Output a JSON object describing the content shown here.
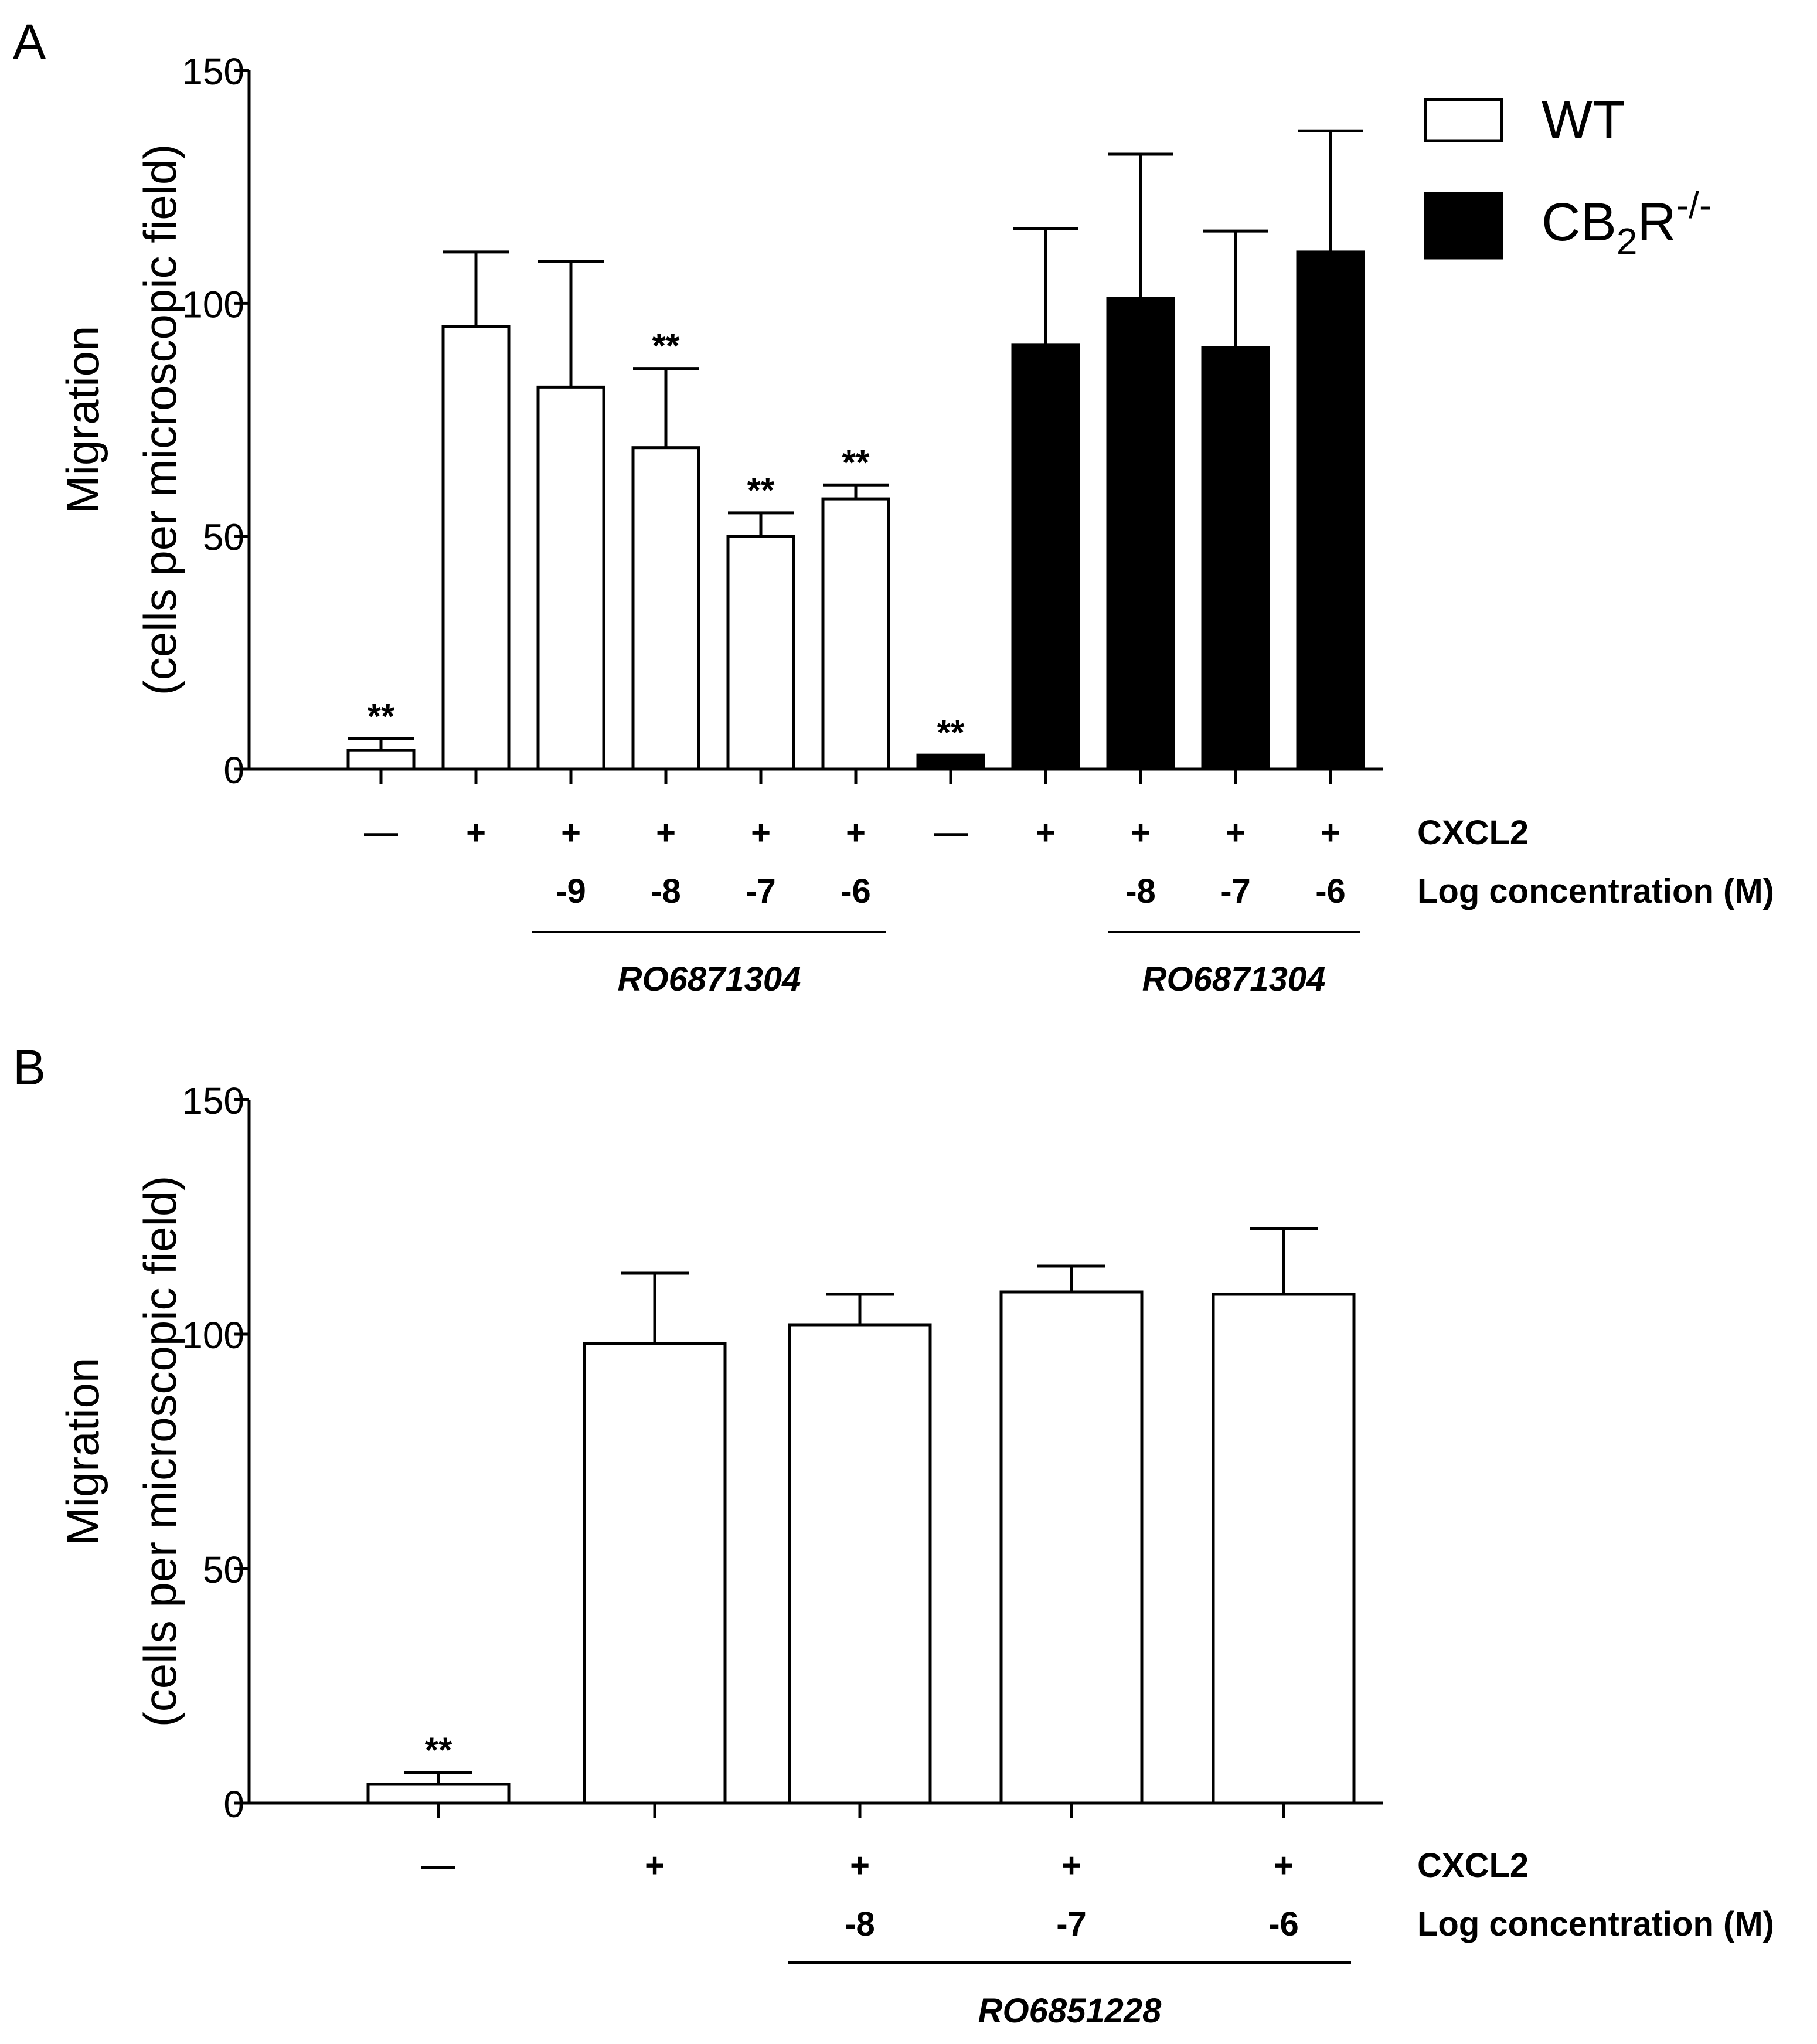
{
  "chart_data": [
    {
      "panel": "A",
      "type": "bar",
      "ylabel_line1": "Migration",
      "ylabel_line2": "(cells per microscopic field)",
      "ylim": [
        0,
        150
      ],
      "yticks": [
        "0",
        "50",
        "100",
        "150"
      ],
      "legend": {
        "placement": "top-right",
        "entries": [
          {
            "label": "WT",
            "fill": "#ffffff"
          },
          {
            "label_base": "CB",
            "label_sub": "2",
            "label_mid": "R",
            "label_sup": "-/-",
            "fill": "#000000"
          }
        ]
      },
      "bars": [
        {
          "group": "WT",
          "value": 4,
          "error": 2.5,
          "sig": "**",
          "cxcl2": "—",
          "logc": ""
        },
        {
          "group": "WT",
          "value": 95,
          "error": 16,
          "sig": "",
          "cxcl2": "+",
          "logc": ""
        },
        {
          "group": "WT",
          "value": 82,
          "error": 27,
          "sig": "",
          "cxcl2": "+",
          "logc": "-9"
        },
        {
          "group": "WT",
          "value": 69,
          "error": 17,
          "sig": "**",
          "cxcl2": "+",
          "logc": "-8"
        },
        {
          "group": "WT",
          "value": 50,
          "error": 5,
          "sig": "**",
          "cxcl2": "+",
          "logc": "-7"
        },
        {
          "group": "WT",
          "value": 58,
          "error": 3,
          "sig": "**",
          "cxcl2": "+",
          "logc": "-6"
        },
        {
          "group": "CB2R-/-",
          "value": 3,
          "error": 0,
          "sig": "**",
          "cxcl2": "—",
          "logc": ""
        },
        {
          "group": "CB2R-/-",
          "value": 91,
          "error": 25,
          "sig": "",
          "cxcl2": "+",
          "logc": ""
        },
        {
          "group": "CB2R-/-",
          "value": 101,
          "error": 31,
          "sig": "",
          "cxcl2": "+",
          "logc": "-8"
        },
        {
          "group": "CB2R-/-",
          "value": 90.5,
          "error": 25,
          "sig": "",
          "cxcl2": "+",
          "logc": "-7"
        },
        {
          "group": "CB2R-/-",
          "value": 111,
          "error": 26,
          "sig": "",
          "cxcl2": "+",
          "logc": "-6"
        }
      ],
      "row_labels": {
        "cxcl2": "CXCL2",
        "logc": "Log concentration (M)"
      },
      "compound_groups": [
        {
          "label": "RO6871304",
          "from_bar": 2,
          "to_bar": 5
        },
        {
          "label": "RO6871304",
          "from_bar": 8,
          "to_bar": 10
        }
      ]
    },
    {
      "panel": "B",
      "type": "bar",
      "ylabel_line1": "Migration",
      "ylabel_line2": "(cells per microscopic field)",
      "ylim": [
        0,
        150
      ],
      "yticks": [
        "0",
        "50",
        "100",
        "150"
      ],
      "bars": [
        {
          "group": "WT",
          "value": 4,
          "error": 2.5,
          "sig": "**",
          "cxcl2": "—",
          "logc": ""
        },
        {
          "group": "WT",
          "value": 98,
          "error": 15,
          "sig": "",
          "cxcl2": "+",
          "logc": ""
        },
        {
          "group": "WT",
          "value": 102,
          "error": 6.5,
          "sig": "",
          "cxcl2": "+",
          "logc": "-8"
        },
        {
          "group": "WT",
          "value": 109,
          "error": 5.5,
          "sig": "",
          "cxcl2": "+",
          "logc": "-7"
        },
        {
          "group": "WT",
          "value": 108.5,
          "error": 14,
          "sig": "",
          "cxcl2": "+",
          "logc": "-6"
        }
      ],
      "row_labels": {
        "cxcl2": "CXCL2",
        "logc": "Log concentration (M)"
      },
      "compound_groups": [
        {
          "label": "RO6851228",
          "from_bar": 2,
          "to_bar": 4
        }
      ]
    }
  ]
}
